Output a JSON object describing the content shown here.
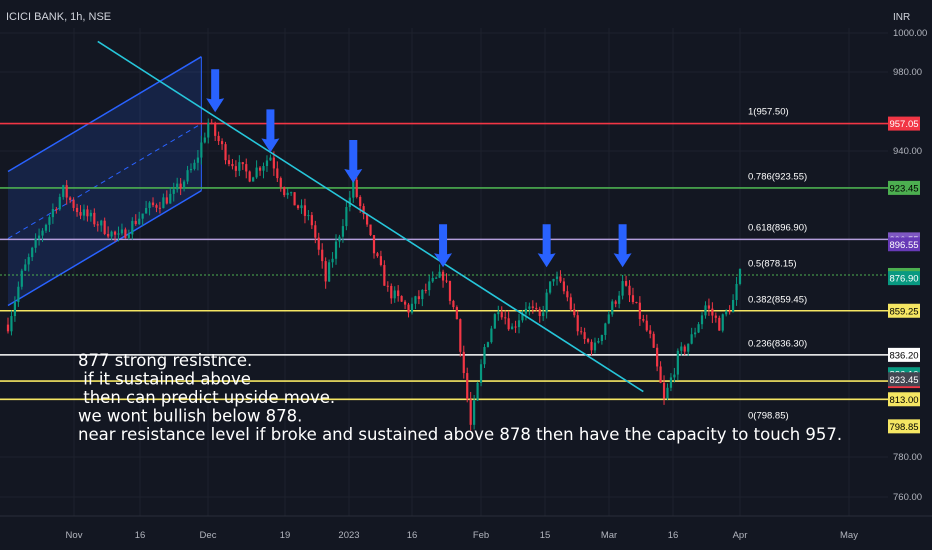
{
  "chart_data": {
    "type": "candlestick",
    "title": "ICICI BANK, 1h, NSE",
    "currency": "INR",
    "y_axis": {
      "ticks": [
        "1000.00",
        "980.00",
        "940.00",
        "780.00",
        "760.00"
      ],
      "ylim": [
        752,
        1007
      ]
    },
    "x_axis": {
      "ticks": [
        "Nov",
        "16",
        "Dec",
        "19",
        "2023",
        "16",
        "Feb",
        "15",
        "Mar",
        "16",
        "Apr",
        "May"
      ]
    },
    "series_path": [
      {
        "t": 0,
        "price": 852
      },
      {
        "t": 2,
        "price": 878
      },
      {
        "t": 5,
        "price": 902
      },
      {
        "t": 8,
        "price": 922
      },
      {
        "t": 10,
        "price": 912
      },
      {
        "t": 13,
        "price": 905
      },
      {
        "t": 16,
        "price": 897
      },
      {
        "t": 20,
        "price": 912
      },
      {
        "t": 24,
        "price": 920
      },
      {
        "t": 27,
        "price": 935
      },
      {
        "t": 29,
        "price": 957.5
      },
      {
        "t": 32,
        "price": 938
      },
      {
        "t": 35,
        "price": 930
      },
      {
        "t": 38,
        "price": 940
      },
      {
        "t": 40,
        "price": 922
      },
      {
        "t": 44,
        "price": 905
      },
      {
        "t": 46,
        "price": 875
      },
      {
        "t": 48,
        "price": 900
      },
      {
        "t": 50,
        "price": 925
      },
      {
        "t": 53,
        "price": 890
      },
      {
        "t": 55,
        "price": 870
      },
      {
        "t": 58,
        "price": 860
      },
      {
        "t": 61,
        "price": 872
      },
      {
        "t": 63,
        "price": 878
      },
      {
        "t": 65,
        "price": 855
      },
      {
        "t": 67,
        "price": 798.85
      },
      {
        "t": 69,
        "price": 840
      },
      {
        "t": 71,
        "price": 862
      },
      {
        "t": 73,
        "price": 850
      },
      {
        "t": 75,
        "price": 862
      },
      {
        "t": 77,
        "price": 855
      },
      {
        "t": 79,
        "price": 878
      },
      {
        "t": 81,
        "price": 866
      },
      {
        "t": 83,
        "price": 845
      },
      {
        "t": 85,
        "price": 840
      },
      {
        "t": 87,
        "price": 858
      },
      {
        "t": 89,
        "price": 873
      },
      {
        "t": 91,
        "price": 860
      },
      {
        "t": 93,
        "price": 845
      },
      {
        "t": 95,
        "price": 812
      },
      {
        "t": 97,
        "price": 835
      },
      {
        "t": 99,
        "price": 845
      },
      {
        "t": 101,
        "price": 862
      },
      {
        "t": 103,
        "price": 852
      },
      {
        "t": 105,
        "price": 864
      },
      {
        "t": 106,
        "price": 877.95
      }
    ],
    "horizontal_levels": [
      {
        "price": 957.05,
        "color": "#f23645",
        "badge": "957.05",
        "badge_bg": "#f23645",
        "badge_fg": "#ffffff"
      },
      {
        "price": 923.45,
        "color": "#4caf50",
        "badge": "923.45",
        "badge_bg": "#4caf50",
        "badge_fg": "#000000"
      },
      {
        "price": 896.55,
        "color": "#b39ddb",
        "badge": "896.55",
        "badge_bg": "#7e57c2",
        "badge_fg": "#ffffff"
      },
      {
        "price": 877.95,
        "color": "#4caf50",
        "badge": "877.95",
        "badge_bg": "#4caf50",
        "badge_fg": "#000000",
        "dotted": true
      },
      {
        "price": 859.25,
        "color": "#f5e663",
        "badge": "859.25",
        "badge_bg": "#f5e663",
        "badge_fg": "#000000"
      },
      {
        "price": 836.2,
        "color": "#ffffff",
        "badge": "836.20",
        "badge_bg": "#ffffff",
        "badge_fg": "#000000"
      },
      {
        "price": 822.5,
        "color": "#f5e663",
        "badge": "822.50",
        "badge_bg": "#f23645",
        "badge_fg": "#ffffff"
      },
      {
        "price": 813,
        "color": "#f5e663",
        "badge": "813.00",
        "badge_bg": "#f5e663",
        "badge_fg": "#000000"
      }
    ],
    "price_badges": [
      {
        "price": 894,
        "text": "896.55",
        "bg": "#673ab7",
        "fg": "#ffffff"
      },
      {
        "price": 876.3,
        "text": "876.90",
        "bg": "#089981",
        "fg": "#ffffff"
      },
      {
        "price": 826.1,
        "text": "826.10",
        "bg": "#089981",
        "fg": "#ffffff"
      },
      {
        "price": 823.45,
        "text": "823.45",
        "bg": "#434651",
        "fg": "#ffffff"
      },
      {
        "price": 798.85,
        "text": "798.85",
        "bg": "#f5e663",
        "fg": "#000000"
      }
    ],
    "fibonacci": [
      {
        "label": "1(957.50)",
        "price": 957.5
      },
      {
        "label": "0.786(923.55)",
        "price": 923.55
      },
      {
        "label": "0.618(896.90)",
        "price": 896.9
      },
      {
        "label": "0.5(878.15)",
        "price": 878.15
      },
      {
        "label": "0.382(859.45)",
        "price": 859.45
      },
      {
        "label": "0.236(836.30)",
        "price": 836.3
      },
      {
        "label": "0(798.85)",
        "price": 798.85
      }
    ],
    "channel": {
      "upper": [
        {
          "t": 0,
          "price": 932
        },
        {
          "t": 28,
          "price": 992
        }
      ],
      "lower": [
        {
          "t": 0,
          "price": 862
        },
        {
          "t": 28,
          "price": 922
        }
      ]
    },
    "trendline": [
      {
        "t": 13,
        "price": 1000
      },
      {
        "t": 92,
        "price": 817
      }
    ],
    "arrows": [
      {
        "t": 30,
        "price": 963
      },
      {
        "t": 38,
        "price": 942
      },
      {
        "t": 50,
        "price": 926
      },
      {
        "t": 63,
        "price": 882
      },
      {
        "t": 78,
        "price": 882
      },
      {
        "t": 89,
        "price": 882
      }
    ],
    "colors": {
      "up": "#089981",
      "down": "#f23645",
      "channel": "#2962ff",
      "trendline": "#26c6da",
      "arrow": "#2962ff"
    },
    "annotation_lines": [
      "877 strong resistnce.",
      " if it sustained above",
      " then can predict upside move.",
      "we wont bullish below 878.",
      "near resistance level if broke and sustained above 878 then have the capacity to touch 957."
    ]
  }
}
